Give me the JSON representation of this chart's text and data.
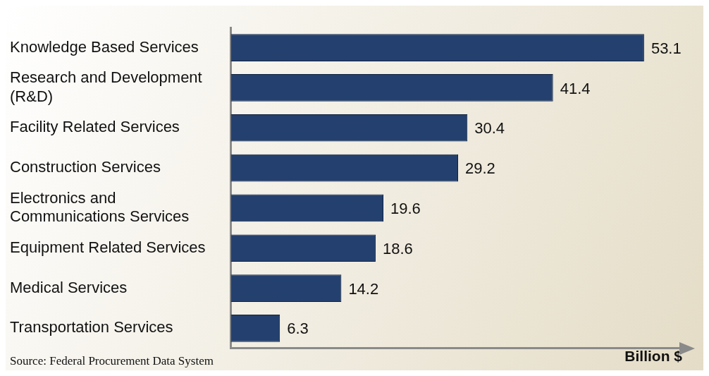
{
  "chart_data": {
    "type": "bar",
    "orientation": "horizontal",
    "xlabel": "Billion $",
    "categories": [
      "Knowledge Based Services",
      "Research and Development (R&D)",
      "Facility Related Services",
      "Construction Services",
      "Electronics and Communications Services",
      "Equipment Related Services",
      "Medical Services",
      "Transportation Services"
    ],
    "values": [
      53.1,
      41.4,
      30.4,
      29.2,
      19.6,
      18.6,
      14.2,
      6.3
    ],
    "color": "#24406e",
    "xlim": [
      0,
      58
    ],
    "data_labels": true,
    "tick_labels": "y",
    "grid": false,
    "legend": false,
    "annotations": [
      "Source: Federal Procurement Data System"
    ]
  }
}
